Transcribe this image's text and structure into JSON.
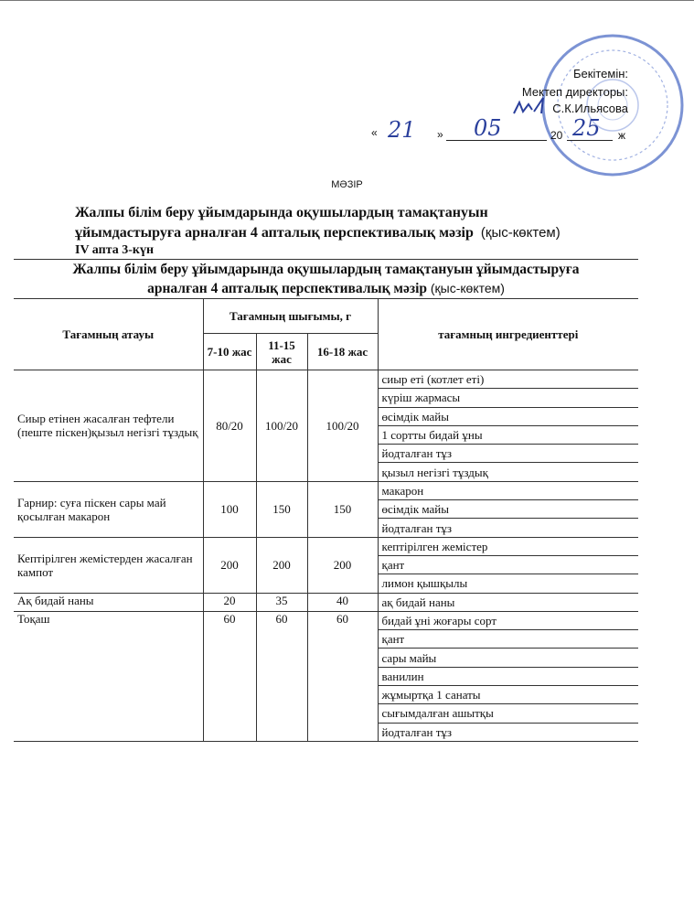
{
  "approval": {
    "title": "Бекітемін:",
    "position": "Мектеп директоры:",
    "name": "С.К.Ильясова",
    "date_day": "21",
    "date_month": "05",
    "date_year_prefix": "20",
    "date_year_suffix": "25",
    "date_suffix": "ж",
    "quote_open": "«",
    "quote_close": "»",
    "stamp_color": "#3a5bbf"
  },
  "menu_label": "МӘЗІР",
  "heading": {
    "line1": "Жалпы білім беру ұйымдарында оқушылардың тамақтануын",
    "line2": "ұйымдастыруға арналған 4 апталық перспективалық мәзір",
    "season": "(қыс-көктем)",
    "week": "IV апта  3-күн"
  },
  "table": {
    "caption_line1": "Жалпы білім беру ұйымдарында оқушылардың тамақтануын ұйымдастыруға",
    "caption_line2": "арналған 4 апталық перспективалық мәзір",
    "caption_season": "(қыс-көктем)",
    "col_name": "Тағамның атауы",
    "col_yield": "Тағамның шығымы, г",
    "col_ages": [
      "7-10 жас",
      "11-15 жас",
      "16-18 жас"
    ],
    "col_ingredients": "тағамның ингредиенттері",
    "dishes": [
      {
        "name": " Сиыр етінен жасалған тефтели (пеште піскен)қызыл негізгі тұздық",
        "yields": [
          "80/20",
          "100/20",
          "100/20"
        ],
        "ingredients": [
          "сиыр еті (котлет еті)",
          "күріш жармасы",
          "өсімдік майы",
          "1 сортты бидай ұны",
          "йодталған тұз",
          "қызыл негізгі тұздық"
        ]
      },
      {
        "name": "Гарнир: суға піскен сары май қосылған макарон",
        "yields": [
          "100",
          "150",
          "150"
        ],
        "ingredients": [
          "макарон",
          "өсімдік майы",
          "йодталған тұз"
        ]
      },
      {
        "name": "Кептірілген жемістерден жасалған кампот",
        "yields": [
          "200",
          "200",
          "200"
        ],
        "ingredients": [
          "кептірілген жемістер",
          "қант",
          "лимон қышқылы"
        ]
      },
      {
        "name": "Ақ бидай наны",
        "yields": [
          "20",
          "35",
          "40"
        ],
        "ingredients": [
          "ақ бидай наны"
        ]
      },
      {
        "name": "Тоқаш",
        "yields": [
          "60",
          "60",
          "60"
        ],
        "ingredients": [
          "бидай ұні жоғары сорт",
          "қант",
          "сары майы",
          "ванилин",
          "жұмыртқа 1 санаты",
          " сығымдалған ашытқы",
          "йодталған тұз"
        ]
      }
    ]
  }
}
